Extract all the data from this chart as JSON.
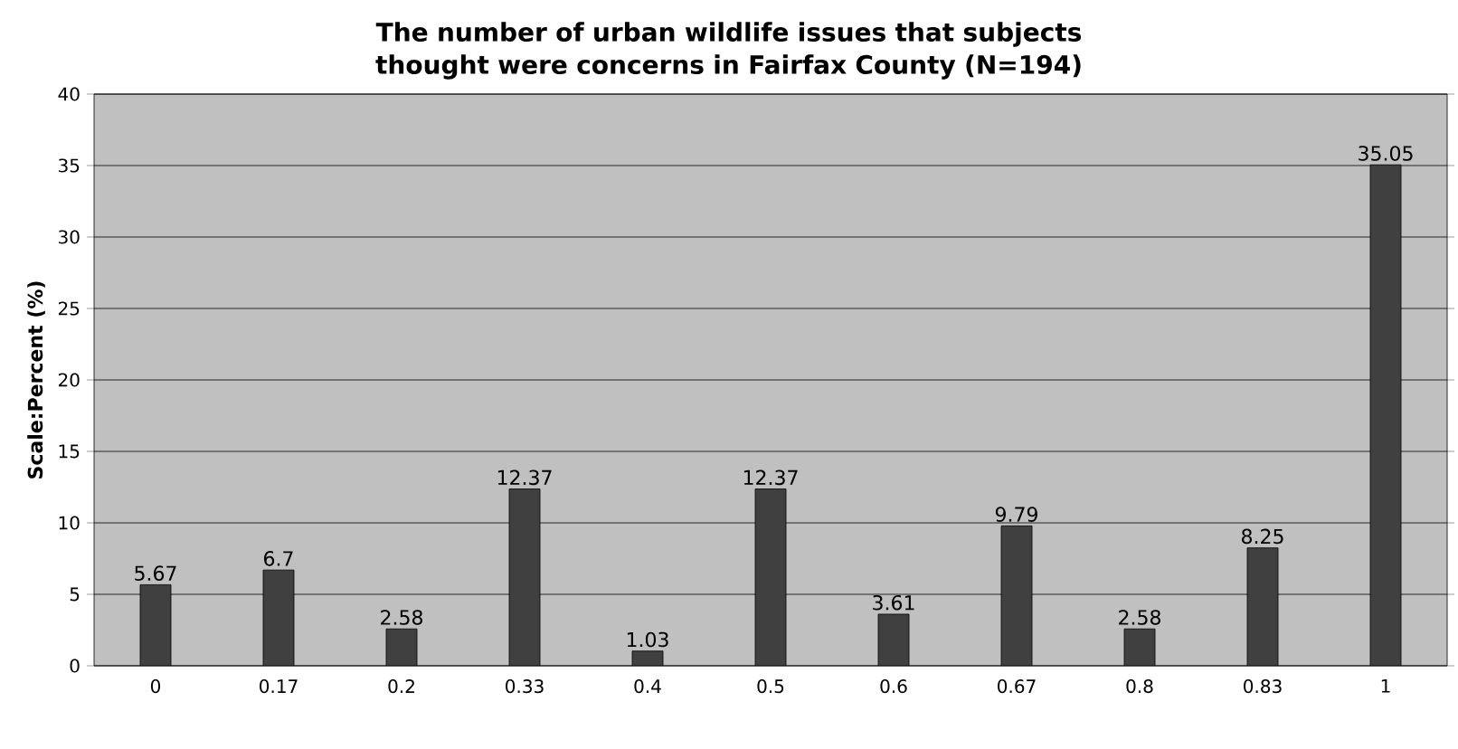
{
  "chart_data": {
    "type": "bar",
    "title": "The number of urban wildlife issues that subjects thought were concerns in Fairfax County (N=194)",
    "ylabel": "Scale:Percent (%)",
    "categories": [
      "0",
      "0.17",
      "0.2",
      "0.33",
      "0.4",
      "0.5",
      "0.6",
      "0.67",
      "0.8",
      "0.83",
      "1"
    ],
    "values": [
      5.67,
      6.7,
      2.58,
      12.37,
      1.03,
      12.37,
      3.61,
      9.79,
      2.58,
      8.25,
      35.05
    ],
    "color": "#404040",
    "ylim": [
      0,
      40
    ],
    "yticks": [
      0,
      5,
      10,
      15,
      20,
      25,
      30,
      35,
      40
    ],
    "grid": "y",
    "data_labels": true
  }
}
